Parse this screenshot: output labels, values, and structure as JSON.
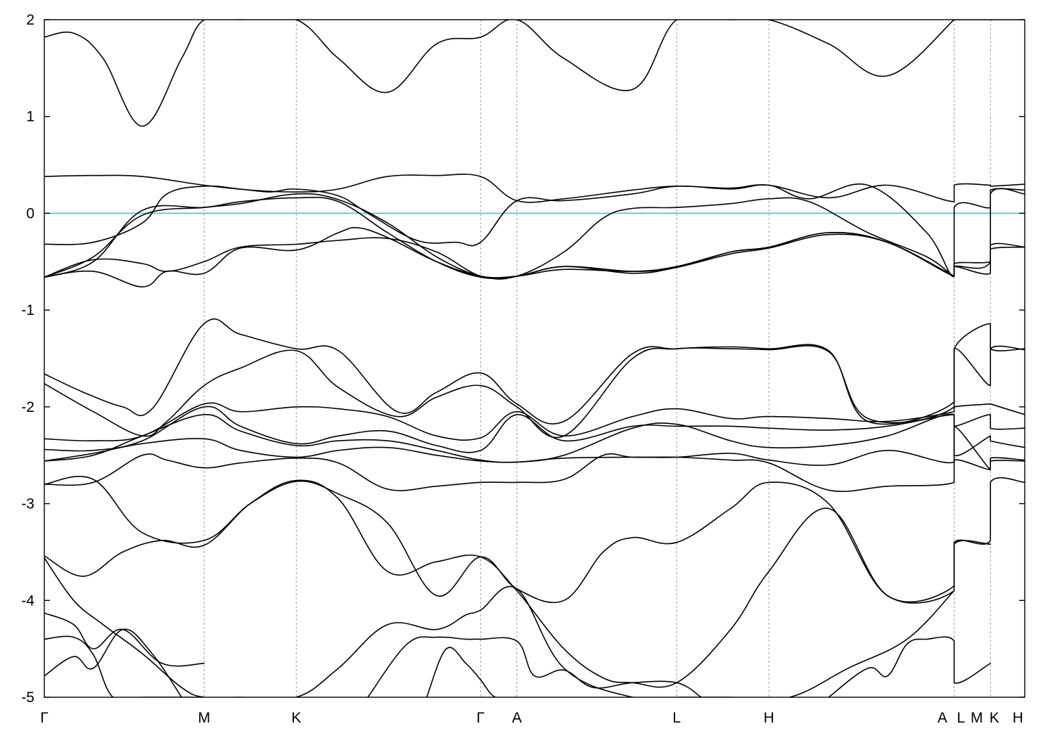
{
  "chart_data": {
    "type": "line",
    "title": "",
    "xlabel": "",
    "ylabel": "",
    "ylim": [
      -5,
      2
    ],
    "xlim": [
      0,
      1.0
    ],
    "yticks": [
      -5,
      -4,
      -3,
      -2,
      -1,
      0,
      1,
      2
    ],
    "ytick_labels": [
      "-5",
      "-4",
      "-3",
      "-2",
      "-1",
      "0",
      "1",
      "2"
    ],
    "kpoints": [
      {
        "label": "Γ",
        "x": 0.0
      },
      {
        "label": "M",
        "x": 0.163
      },
      {
        "label": "K",
        "x": 0.257
      },
      {
        "label": "Γ",
        "x": 0.445
      },
      {
        "label": "A",
        "x": 0.482
      },
      {
        "label": "L",
        "x": 0.645
      },
      {
        "label": "H",
        "x": 0.739
      },
      {
        "label": "A",
        "x": 0.928
      },
      {
        "label": "L",
        "x": 0.928
      },
      {
        "label": "M",
        "x": 0.965
      },
      {
        "label": "K",
        "x": 0.965
      },
      {
        "label": "H",
        "x": 1.0
      }
    ],
    "xtick_text": [
      {
        "label": "Γ",
        "x": 0.0
      },
      {
        "label": "M",
        "x": 0.163
      },
      {
        "label": "K",
        "x": 0.257
      },
      {
        "label": "Γ",
        "x": 0.445
      },
      {
        "label": "A",
        "x": 0.482
      },
      {
        "label": "L",
        "x": 0.645
      },
      {
        "label": "H",
        "x": 0.739
      },
      {
        "label": "A",
        "x": 0.916
      },
      {
        "label": "L",
        "x": 0.935
      },
      {
        "label": "M",
        "x": 0.951
      },
      {
        "label": "K",
        "x": 0.969
      },
      {
        "label": "H",
        "x": 0.993
      }
    ],
    "fermi_level": 0,
    "fermi_color": "#5fb4cf",
    "grid": "dashed vertical lines at high-symmetry points",
    "legend": "none",
    "series": [
      {
        "x": [
          0.0,
          0.03,
          0.06,
          0.1,
          0.14,
          0.163,
          0.2,
          0.257,
          0.3,
          0.35,
          0.4,
          0.445,
          0.482,
          0.53,
          0.6,
          0.645,
          0.7,
          0.739,
          0.8,
          0.86,
          0.928,
          0.928,
          0.965,
          0.965,
          1.0
        ],
        "y": [
          1.82,
          1.86,
          1.6,
          0.9,
          1.6,
          2.0,
          2.0,
          2.0,
          1.6,
          1.25,
          1.75,
          1.82,
          2.0,
          1.6,
          1.28,
          2.0,
          2.0,
          2.0,
          1.75,
          1.42,
          2.0,
          2.0,
          2.0,
          2.0,
          2.0
        ]
      },
      {
        "x": [
          0.0,
          0.05,
          0.1,
          0.163,
          0.21,
          0.257,
          0.3,
          0.35,
          0.4,
          0.445,
          0.482,
          0.53,
          0.6,
          0.645,
          0.7,
          0.739,
          0.8,
          0.86,
          0.928,
          0.928,
          0.965,
          0.965,
          1.0
        ],
        "y": [
          0.38,
          0.39,
          0.38,
          0.29,
          0.24,
          0.22,
          0.25,
          0.38,
          0.39,
          0.38,
          0.13,
          0.15,
          0.24,
          0.28,
          0.26,
          0.29,
          0.16,
          0.29,
          0.12,
          0.29,
          0.29,
          0.28,
          0.3
        ]
      },
      {
        "x": [
          0.0,
          0.05,
          0.1,
          0.125,
          0.163,
          0.2,
          0.23,
          0.257,
          0.3,
          0.33,
          0.38,
          0.42,
          0.445,
          0.482,
          0.53,
          0.6,
          0.645,
          0.7,
          0.739,
          0.78,
          0.84,
          0.9,
          0.928,
          0.928,
          0.965,
          0.965,
          1.0
        ],
        "y": [
          -0.32,
          -0.3,
          -0.1,
          0.2,
          0.28,
          0.25,
          0.22,
          0.25,
          0.18,
          0.0,
          -0.28,
          -0.3,
          -0.3,
          0.13,
          0.13,
          0.2,
          0.28,
          0.25,
          0.29,
          0.15,
          0.29,
          -0.2,
          -0.65,
          0.06,
          0.06,
          0.24,
          0.24
        ]
      },
      {
        "x": [
          0.0,
          0.05,
          0.1,
          0.163,
          0.2,
          0.257,
          0.3,
          0.35,
          0.4,
          0.445,
          0.482,
          0.53,
          0.57,
          0.6,
          0.645,
          0.7,
          0.739,
          0.78,
          0.84,
          0.9,
          0.928,
          0.928,
          0.965,
          0.965,
          1.0
        ],
        "y": [
          -0.66,
          -0.45,
          -0.02,
          0.06,
          0.1,
          0.2,
          0.14,
          -0.1,
          -0.45,
          -0.65,
          -0.65,
          -0.4,
          -0.05,
          0.05,
          0.06,
          0.1,
          0.15,
          0.12,
          -0.2,
          -0.45,
          -0.65,
          -0.55,
          -0.5,
          0.2,
          0.2
        ]
      },
      {
        "x": [
          0.0,
          0.05,
          0.1,
          0.163,
          0.2,
          0.257,
          0.3,
          0.35,
          0.4,
          0.445,
          0.482,
          0.53,
          0.6,
          0.645,
          0.7,
          0.739,
          0.8,
          0.86,
          0.928,
          0.928,
          0.965,
          0.965,
          1.0
        ],
        "y": [
          -0.66,
          -0.5,
          0.03,
          0.06,
          0.12,
          0.16,
          0.12,
          -0.2,
          -0.5,
          -0.66,
          -0.65,
          -0.55,
          -0.6,
          -0.56,
          -0.4,
          -0.35,
          -0.2,
          -0.3,
          -0.65,
          -0.55,
          -0.62,
          -0.33,
          -0.35
        ]
      },
      {
        "x": [
          0.0,
          0.05,
          0.1,
          0.125,
          0.163,
          0.2,
          0.257,
          0.3,
          0.35,
          0.4,
          0.445,
          0.482,
          0.53,
          0.6,
          0.645,
          0.7,
          0.739,
          0.8,
          0.86,
          0.928,
          0.928,
          0.965,
          0.965,
          1.0
        ],
        "y": [
          -0.66,
          -0.48,
          -0.52,
          -0.6,
          -0.5,
          -0.35,
          -0.32,
          -0.28,
          -0.26,
          -0.4,
          -0.65,
          -0.65,
          -0.55,
          -0.62,
          -0.56,
          -0.42,
          -0.36,
          -0.22,
          -0.3,
          -0.65,
          -0.52,
          -0.5,
          -0.37,
          -0.35
        ]
      },
      {
        "x": [
          0.0,
          0.05,
          0.1,
          0.125,
          0.163,
          0.2,
          0.257,
          0.3,
          0.32,
          0.35,
          0.4,
          0.445,
          0.482,
          0.53,
          0.6,
          0.645,
          0.7,
          0.739,
          0.8,
          0.86,
          0.928
        ],
        "y": [
          -0.66,
          -0.6,
          -0.76,
          -0.6,
          -0.62,
          -0.36,
          -0.38,
          -0.2,
          -0.15,
          -0.25,
          -0.5,
          -0.65,
          -0.65,
          -0.58,
          -0.6,
          -0.55,
          -0.4,
          -0.35,
          -0.2,
          -0.3,
          -0.65
        ]
      },
      {
        "x": [
          0.0,
          0.04,
          0.08,
          0.11,
          0.163,
          0.2,
          0.257,
          0.3,
          0.36,
          0.4,
          0.445,
          0.482,
          0.53,
          0.6,
          0.645,
          0.7,
          0.739,
          0.8,
          0.84,
          0.928,
          0.928,
          0.965,
          0.965,
          1.0
        ],
        "y": [
          -1.66,
          -1.85,
          -2.0,
          -2.02,
          -1.14,
          -1.25,
          -1.4,
          -1.42,
          -2.05,
          -1.85,
          -1.65,
          -1.97,
          -2.15,
          -1.45,
          -1.4,
          -1.38,
          -1.4,
          -1.42,
          -2.15,
          -1.95,
          -1.4,
          -1.14,
          -1.4,
          -1.4
        ]
      },
      {
        "x": [
          0.0,
          0.05,
          0.1,
          0.125,
          0.163,
          0.2,
          0.257,
          0.3,
          0.36,
          0.4,
          0.445,
          0.482,
          0.53,
          0.6,
          0.645,
          0.7,
          0.739,
          0.8,
          0.84,
          0.928,
          0.928,
          0.965,
          0.965,
          1.0
        ],
        "y": [
          -1.76,
          -2.05,
          -2.3,
          -2.15,
          -1.78,
          -1.6,
          -1.42,
          -1.8,
          -2.1,
          -1.9,
          -1.78,
          -2.0,
          -2.3,
          -1.5,
          -1.4,
          -1.4,
          -1.41,
          -1.43,
          -2.12,
          -2.0,
          -1.4,
          -1.78,
          -1.4,
          -1.41
        ]
      },
      {
        "x": [
          0.0,
          0.05,
          0.1,
          0.163,
          0.2,
          0.257,
          0.3,
          0.35,
          0.4,
          0.445,
          0.482,
          0.53,
          0.6,
          0.645,
          0.7,
          0.739,
          0.8,
          0.86,
          0.928,
          0.928,
          0.965,
          0.965,
          1.0
        ],
        "y": [
          -2.33,
          -2.35,
          -2.3,
          -1.97,
          -2.05,
          -2.0,
          -2.02,
          -2.1,
          -2.3,
          -2.32,
          -2.05,
          -2.3,
          -2.1,
          -2.02,
          -2.12,
          -2.1,
          -2.12,
          -2.15,
          -2.05,
          -2.0,
          -1.97,
          -1.97,
          -2.08
        ]
      },
      {
        "x": [
          0.0,
          0.05,
          0.1,
          0.163,
          0.2,
          0.257,
          0.3,
          0.35,
          0.4,
          0.445,
          0.482,
          0.53,
          0.6,
          0.645,
          0.7,
          0.739,
          0.8,
          0.86,
          0.928,
          0.928,
          0.965,
          0.965,
          1.0
        ],
        "y": [
          -2.44,
          -2.45,
          -2.35,
          -2.0,
          -2.2,
          -2.38,
          -2.3,
          -2.25,
          -2.4,
          -2.45,
          -2.08,
          -2.35,
          -2.2,
          -2.2,
          -2.2,
          -2.22,
          -2.24,
          -2.2,
          -2.08,
          -2.2,
          -2.08,
          -2.22,
          -2.22
        ]
      },
      {
        "x": [
          0.0,
          0.05,
          0.1,
          0.163,
          0.2,
          0.257,
          0.3,
          0.35,
          0.4,
          0.445,
          0.482,
          0.53,
          0.6,
          0.645,
          0.7,
          0.739,
          0.8,
          0.86,
          0.928,
          0.928,
          0.965,
          0.965,
          1.0
        ],
        "y": [
          -2.56,
          -2.5,
          -2.3,
          -2.08,
          -2.25,
          -2.4,
          -2.35,
          -2.35,
          -2.45,
          -2.55,
          -2.57,
          -2.5,
          -2.22,
          -2.18,
          -2.35,
          -2.42,
          -2.4,
          -2.3,
          -2.08,
          -2.5,
          -2.3,
          -2.35,
          -2.42
        ]
      },
      {
        "x": [
          0.0,
          0.05,
          0.1,
          0.163,
          0.2,
          0.257,
          0.3,
          0.35,
          0.4,
          0.445,
          0.482,
          0.53,
          0.6,
          0.645,
          0.7,
          0.739,
          0.8,
          0.86,
          0.928,
          0.928,
          0.965,
          0.965,
          1.0
        ],
        "y": [
          -2.56,
          -2.48,
          -2.38,
          -2.33,
          -2.45,
          -2.52,
          -2.45,
          -2.42,
          -2.5,
          -2.56,
          -2.57,
          -2.53,
          -2.52,
          -2.52,
          -2.48,
          -2.55,
          -2.6,
          -2.45,
          -2.57,
          -2.2,
          -2.65,
          -2.53,
          -2.55
        ]
      },
      {
        "x": [
          0.0,
          0.05,
          0.1,
          0.125,
          0.163,
          0.2,
          0.257,
          0.3,
          0.35,
          0.4,
          0.445,
          0.482,
          0.53,
          0.57,
          0.6,
          0.645,
          0.7,
          0.739,
          0.8,
          0.86,
          0.928,
          0.928,
          0.965,
          0.965,
          1.0
        ],
        "y": [
          -2.8,
          -2.78,
          -2.5,
          -2.55,
          -2.63,
          -2.58,
          -2.53,
          -2.58,
          -2.85,
          -2.82,
          -2.78,
          -2.78,
          -2.75,
          -2.5,
          -2.52,
          -2.52,
          -2.55,
          -2.58,
          -2.86,
          -2.82,
          -2.78,
          -2.55,
          -2.65,
          -2.56,
          -2.56
        ]
      },
      {
        "x": [
          0.0,
          0.05,
          0.1,
          0.163,
          0.21,
          0.257,
          0.3,
          0.35,
          0.4,
          0.445,
          0.482,
          0.53,
          0.57,
          0.6,
          0.645,
          0.7,
          0.739,
          0.8,
          0.86,
          0.928,
          0.928,
          0.965,
          0.965,
          1.0
        ],
        "y": [
          -2.8,
          -2.75,
          -3.3,
          -3.38,
          -3.0,
          -2.77,
          -2.9,
          -3.2,
          -3.95,
          -3.55,
          -3.88,
          -4.0,
          -3.5,
          -3.35,
          -3.4,
          -3.05,
          -2.78,
          -3.0,
          -3.95,
          -3.85,
          -3.4,
          -3.38,
          -2.78,
          -2.78
        ]
      },
      {
        "x": [
          0.0,
          0.04,
          0.08,
          0.12,
          0.163,
          0.21,
          0.257,
          0.3,
          0.35,
          0.4,
          0.445,
          0.482,
          0.53,
          0.57,
          0.6,
          0.645,
          0.7,
          0.739,
          0.8,
          0.86,
          0.928,
          0.928,
          0.965
        ],
        "y": [
          -3.54,
          -3.75,
          -3.5,
          -3.38,
          -3.43,
          -3.0,
          -2.76,
          -2.95,
          -3.7,
          -3.6,
          -3.55,
          -3.9,
          -4.5,
          -4.8,
          -4.85,
          -4.85,
          -4.3,
          -3.7,
          -3.05,
          -3.95,
          -3.9,
          -3.42,
          -3.42
        ]
      },
      {
        "x": [
          0.0,
          0.03,
          0.06,
          0.1,
          0.14,
          0.163,
          0.2,
          0.257,
          0.3,
          0.35,
          0.4,
          0.43,
          0.445,
          0.482,
          0.53,
          0.6,
          0.65,
          0.7,
          0.76,
          0.82,
          0.88,
          0.928
        ],
        "y": [
          -3.56,
          -4.0,
          -4.25,
          -4.55,
          -4.9,
          -5.0,
          -5.0,
          -5.0,
          -4.7,
          -4.25,
          -4.3,
          -4.15,
          -4.1,
          -3.88,
          -4.7,
          -5.0,
          -5.0,
          -5.0,
          -5.0,
          -4.7,
          -4.4,
          -3.9
        ]
      },
      {
        "x": [
          0.0,
          0.03,
          0.05,
          0.08,
          0.12,
          0.163
        ],
        "y": [
          -4.13,
          -4.25,
          -4.5,
          -4.3,
          -4.65,
          -4.65
        ]
      },
      {
        "x": [
          0.0,
          0.03,
          0.05,
          0.07,
          0.1,
          0.13,
          0.16
        ],
        "y": [
          -4.4,
          -4.38,
          -4.56,
          -5.0,
          -5.0,
          -5.0,
          -5.0
        ]
      },
      {
        "x": [
          0.0,
          0.03,
          0.05,
          0.08,
          0.11,
          0.14
        ],
        "y": [
          -4.78,
          -4.58,
          -4.7,
          -4.3,
          -4.55,
          -5.0
        ]
      },
      {
        "x": [
          0.33,
          0.37,
          0.4,
          0.43,
          0.445,
          0.482,
          0.5,
          0.53,
          0.56,
          0.6,
          0.645,
          0.67
        ],
        "y": [
          -5.0,
          -4.45,
          -4.38,
          -4.4,
          -4.4,
          -4.42,
          -4.78,
          -4.72,
          -4.9,
          -4.85,
          -4.85,
          -5.0
        ]
      },
      {
        "x": [
          0.39,
          0.41,
          0.43,
          0.445,
          0.46,
          0.482
        ],
        "y": [
          -5.0,
          -4.5,
          -4.65,
          -4.82,
          -5.0,
          -5.0
        ]
      },
      {
        "x": [
          0.8,
          0.84,
          0.86,
          0.88,
          0.9,
          0.928,
          0.928,
          0.965
        ],
        "y": [
          -5.0,
          -4.7,
          -4.78,
          -4.45,
          -4.4,
          -4.42,
          -4.85,
          -4.65
        ]
      }
    ]
  }
}
